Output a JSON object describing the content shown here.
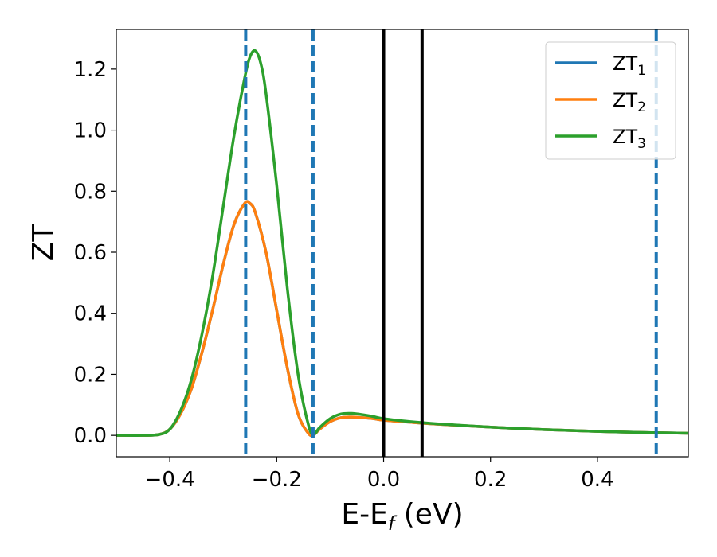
{
  "chart_data": {
    "type": "line",
    "xlabel_main": "E-E",
    "xlabel_sub": "f",
    "xlabel_tail": " (eV)",
    "ylabel": "ZT",
    "xlim": [
      -0.5,
      0.57
    ],
    "ylim": [
      -0.07,
      1.33
    ],
    "xticks": [
      -0.4,
      -0.2,
      0.0,
      0.2,
      0.4
    ],
    "xtick_labels": [
      "−0.4",
      "−0.2",
      "0.0",
      "0.2",
      "0.4"
    ],
    "yticks": [
      0.0,
      0.2,
      0.4,
      0.6,
      0.8,
      1.0,
      1.2
    ],
    "ytick_labels": [
      "0.0",
      "0.2",
      "0.4",
      "0.6",
      "0.8",
      "1.0",
      "1.2"
    ],
    "grid": false,
    "legend_position": "top-right",
    "series": [
      {
        "name": "ZT",
        "sub": "1",
        "color": "#1f77b4",
        "x": [
          -0.5,
          -0.45,
          -0.42,
          -0.4,
          -0.38,
          -0.36,
          -0.34,
          -0.32,
          -0.3,
          -0.28,
          -0.26,
          -0.25,
          -0.24,
          -0.22,
          -0.2,
          -0.18,
          -0.16,
          -0.14,
          -0.13,
          -0.12,
          -0.1,
          -0.08,
          -0.06,
          -0.04,
          -0.02,
          0.0,
          0.05,
          0.1,
          0.2,
          0.3,
          0.4,
          0.5,
          0.57
        ],
        "y": [
          0.0,
          0.0,
          0.003,
          0.02,
          0.07,
          0.15,
          0.27,
          0.41,
          0.56,
          0.69,
          0.76,
          0.76,
          0.73,
          0.6,
          0.41,
          0.22,
          0.07,
          0.005,
          0.003,
          0.02,
          0.045,
          0.058,
          0.06,
          0.058,
          0.055,
          0.05,
          0.043,
          0.037,
          0.027,
          0.019,
          0.013,
          0.009,
          0.007
        ]
      },
      {
        "name": "ZT",
        "sub": "2",
        "color": "#ff7f0e",
        "x": [
          -0.5,
          -0.45,
          -0.42,
          -0.4,
          -0.38,
          -0.36,
          -0.34,
          -0.32,
          -0.3,
          -0.28,
          -0.26,
          -0.25,
          -0.24,
          -0.22,
          -0.2,
          -0.18,
          -0.16,
          -0.14,
          -0.13,
          -0.12,
          -0.1,
          -0.08,
          -0.06,
          -0.04,
          -0.02,
          0.0,
          0.05,
          0.1,
          0.2,
          0.3,
          0.4,
          0.5,
          0.57
        ],
        "y": [
          0.0,
          0.0,
          0.003,
          0.02,
          0.07,
          0.15,
          0.27,
          0.41,
          0.56,
          0.69,
          0.76,
          0.76,
          0.73,
          0.6,
          0.41,
          0.22,
          0.07,
          0.005,
          0.003,
          0.02,
          0.045,
          0.058,
          0.06,
          0.058,
          0.055,
          0.05,
          0.043,
          0.037,
          0.027,
          0.019,
          0.013,
          0.009,
          0.007
        ]
      },
      {
        "name": "ZT",
        "sub": "3",
        "color": "#2ca02c",
        "x": [
          -0.5,
          -0.45,
          -0.42,
          -0.4,
          -0.38,
          -0.36,
          -0.34,
          -0.32,
          -0.3,
          -0.28,
          -0.26,
          -0.25,
          -0.24,
          -0.23,
          -0.22,
          -0.2,
          -0.18,
          -0.16,
          -0.14,
          -0.13,
          -0.12,
          -0.1,
          -0.08,
          -0.06,
          -0.04,
          -0.02,
          0.0,
          0.05,
          0.1,
          0.2,
          0.3,
          0.4,
          0.5,
          0.57
        ],
        "y": [
          0.0,
          0.0,
          0.003,
          0.02,
          0.08,
          0.18,
          0.33,
          0.52,
          0.75,
          0.98,
          1.17,
          1.24,
          1.26,
          1.22,
          1.12,
          0.82,
          0.48,
          0.2,
          0.03,
          0.005,
          0.025,
          0.055,
          0.07,
          0.072,
          0.068,
          0.062,
          0.055,
          0.045,
          0.038,
          0.027,
          0.019,
          0.013,
          0.009,
          0.007
        ]
      }
    ],
    "vlines": [
      {
        "x": -0.258,
        "style": "dashed",
        "color": "#1f77b4"
      },
      {
        "x": -0.132,
        "style": "dashed",
        "color": "#1f77b4"
      },
      {
        "x": 0.0,
        "style": "solid",
        "color": "#000000"
      },
      {
        "x": 0.072,
        "style": "solid",
        "color": "#000000"
      },
      {
        "x": 0.51,
        "style": "dashed",
        "color": "#1f77b4"
      }
    ]
  }
}
